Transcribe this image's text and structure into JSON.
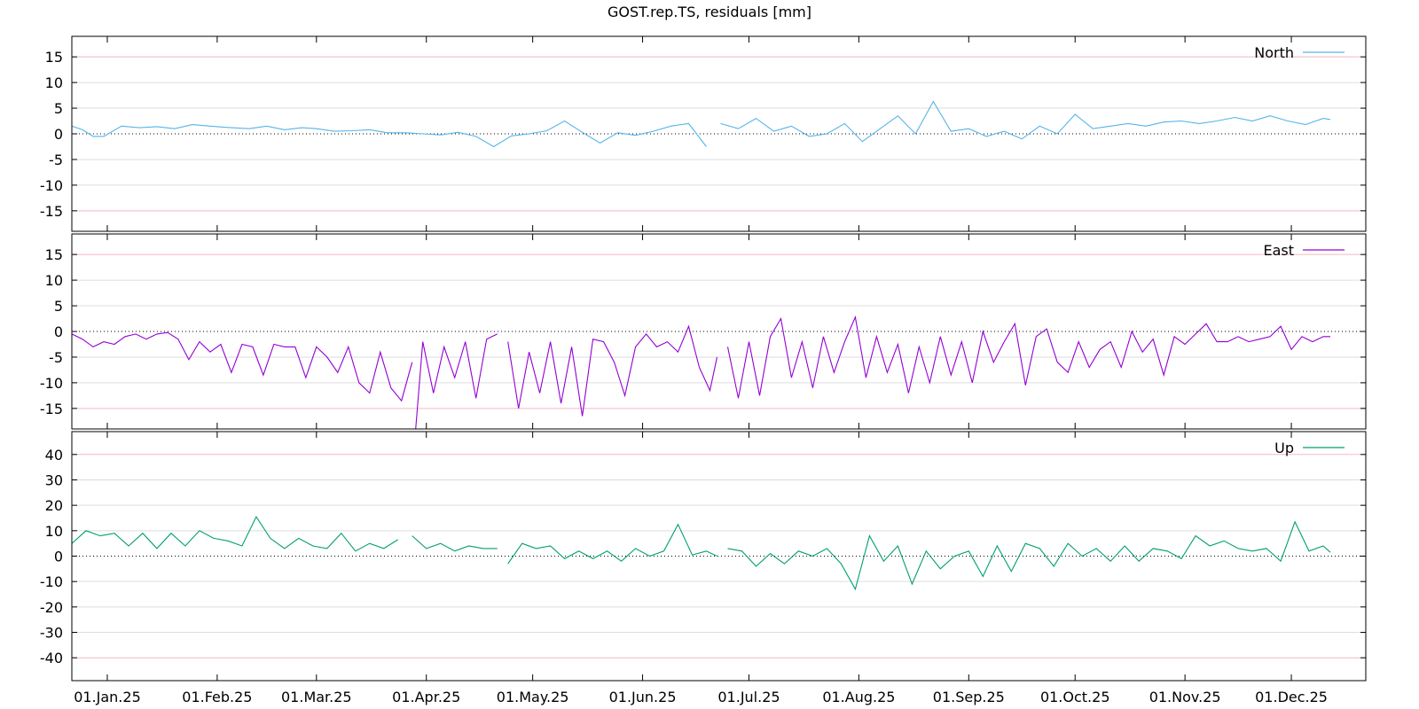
{
  "chart_data": {
    "type": "line",
    "title": "GOST.rep.TS, residuals [mm]",
    "x_range": [
      "2024-12-22",
      "2025-12-22"
    ],
    "x_ticks": [
      {
        "date": "2025-01-01",
        "label": "01.Jan.25"
      },
      {
        "date": "2025-02-01",
        "label": "01.Feb.25"
      },
      {
        "date": "2025-03-01",
        "label": "01.Mar.25"
      },
      {
        "date": "2025-04-01",
        "label": "01.Apr.25"
      },
      {
        "date": "2025-05-01",
        "label": "01.May.25"
      },
      {
        "date": "2025-06-01",
        "label": "01.Jun.25"
      },
      {
        "date": "2025-07-01",
        "label": "01.Jul.25"
      },
      {
        "date": "2025-08-01",
        "label": "01.Aug.25"
      },
      {
        "date": "2025-09-01",
        "label": "01.Sep.25"
      },
      {
        "date": "2025-10-01",
        "label": "01.Oct.25"
      },
      {
        "date": "2025-11-01",
        "label": "01.Nov.25"
      },
      {
        "date": "2025-12-01",
        "label": "01.Dec.25"
      }
    ],
    "grid": true,
    "legend_position": "top-right",
    "panels": [
      {
        "name": "North",
        "color": "#56b4e9",
        "ylim": [
          -19,
          19
        ],
        "y_ticks": [
          15,
          10,
          5,
          0,
          -5,
          -10,
          -15
        ],
        "series": [
          {
            "x": [
              "2024-12-22",
              "2024-12-25",
              "2024-12-28",
              "2024-12-31",
              "2025-01-05",
              "2025-01-10",
              "2025-01-15",
              "2025-01-20",
              "2025-01-25",
              "2025-01-30",
              "2025-02-05",
              "2025-02-10",
              "2025-02-15",
              "2025-02-20",
              "2025-02-25",
              "2025-03-01",
              "2025-03-06",
              "2025-03-11",
              "2025-03-16",
              "2025-03-21",
              "2025-03-26",
              "2025-03-31",
              "2025-04-05",
              "2025-04-10",
              "2025-04-15",
              "2025-04-20",
              "2025-04-25",
              "2025-04-30",
              "2025-05-05",
              "2025-05-10",
              "2025-05-15",
              "2025-05-20",
              "2025-05-25",
              "2025-05-30",
              "2025-06-04",
              "2025-06-09",
              "2025-06-14",
              "2025-06-19"
            ],
            "y": [
              1.5,
              0.8,
              -0.5,
              -0.5,
              1.5,
              1.2,
              1.4,
              1.0,
              1.8,
              1.5,
              1.2,
              1.0,
              1.5,
              0.8,
              1.2,
              1.0,
              0.5,
              0.6,
              0.8,
              0.2,
              0.2,
              0.0,
              -0.2,
              0.3,
              -0.5,
              -2.5,
              -0.4,
              0.0,
              0.6,
              2.5,
              0.3,
              -1.8,
              0.2,
              -0.3,
              0.5,
              1.5,
              2.0,
              -2.5
            ]
          },
          {
            "x": [
              "2025-06-23",
              "2025-06-28",
              "2025-07-03",
              "2025-07-08",
              "2025-07-13",
              "2025-07-18",
              "2025-07-23",
              "2025-07-28",
              "2025-08-02",
              "2025-08-07",
              "2025-08-12",
              "2025-08-17",
              "2025-08-22",
              "2025-08-27",
              "2025-09-01",
              "2025-09-06",
              "2025-09-11",
              "2025-09-16",
              "2025-09-21",
              "2025-09-26",
              "2025-10-01",
              "2025-10-06",
              "2025-10-11",
              "2025-10-16",
              "2025-10-21",
              "2025-10-26",
              "2025-10-31",
              "2025-11-05",
              "2025-11-10",
              "2025-11-15",
              "2025-11-20",
              "2025-11-25",
              "2025-11-30",
              "2025-12-05",
              "2025-12-10",
              "2025-12-12"
            ],
            "y": [
              2.0,
              1.0,
              3.0,
              0.5,
              1.5,
              -0.5,
              0.0,
              2.0,
              -1.5,
              1.0,
              3.5,
              0.0,
              6.3,
              0.5,
              1.0,
              -0.5,
              0.5,
              -1.0,
              1.5,
              0.0,
              3.8,
              1.0,
              1.5,
              2.0,
              1.5,
              2.3,
              2.5,
              2.0,
              2.5,
              3.2,
              2.5,
              3.5,
              2.5,
              1.8,
              3.0,
              2.8
            ]
          }
        ]
      },
      {
        "name": "East",
        "color": "#9400d3",
        "ylim": [
          -19,
          19
        ],
        "y_ticks": [
          15,
          10,
          5,
          0,
          -5,
          -10,
          -15
        ],
        "series": [
          {
            "x": [
              "2024-12-22",
              "2024-12-25",
              "2024-12-28",
              "2024-12-31",
              "2025-01-03",
              "2025-01-06",
              "2025-01-09",
              "2025-01-12",
              "2025-01-15",
              "2025-01-18",
              "2025-01-21",
              "2025-01-24",
              "2025-01-27",
              "2025-01-30",
              "2025-02-02",
              "2025-02-05",
              "2025-02-08",
              "2025-02-11",
              "2025-02-14",
              "2025-02-17",
              "2025-02-20",
              "2025-02-23",
              "2025-02-26",
              "2025-03-01",
              "2025-03-04",
              "2025-03-07",
              "2025-03-10",
              "2025-03-13",
              "2025-03-16",
              "2025-03-19",
              "2025-03-22",
              "2025-03-25",
              "2025-03-28"
            ],
            "y": [
              -0.5,
              -1.5,
              -3.0,
              -2.0,
              -2.5,
              -1.0,
              -0.5,
              -1.5,
              -0.5,
              -0.2,
              -1.5,
              -5.5,
              -2.0,
              -4.0,
              -2.5,
              -8.0,
              -2.5,
              -3.0,
              -8.5,
              -2.5,
              -3.0,
              -3.0,
              -9.0,
              -3.0,
              -5.0,
              -8.0,
              -3.0,
              -10.0,
              -12.0,
              -4.0,
              -11.0,
              -13.5,
              -6.0
            ]
          },
          {
            "x": [
              "2025-03-29",
              "2025-03-31",
              "2025-04-03",
              "2025-04-06",
              "2025-04-09",
              "2025-04-12",
              "2025-04-15",
              "2025-04-18",
              "2025-04-21"
            ],
            "y": [
              -19.0,
              -2.0,
              -12.0,
              -3.0,
              -9.0,
              -2.0,
              -13.0,
              -1.5,
              -0.5
            ]
          },
          {
            "x": [
              "2025-04-24",
              "2025-04-27",
              "2025-04-30",
              "2025-05-03",
              "2025-05-06",
              "2025-05-09",
              "2025-05-12",
              "2025-05-15",
              "2025-05-18",
              "2025-05-21",
              "2025-05-24",
              "2025-05-27",
              "2025-05-30",
              "2025-06-02",
              "2025-06-05",
              "2025-06-08",
              "2025-06-11",
              "2025-06-14",
              "2025-06-17",
              "2025-06-20",
              "2025-06-22"
            ],
            "y": [
              -2.0,
              -15.0,
              -4.0,
              -12.0,
              -2.0,
              -14.0,
              -3.0,
              -16.5,
              -1.5,
              -2.0,
              -6.0,
              -12.5,
              -3.0,
              -0.5,
              -3.0,
              -2.0,
              -4.0,
              1.0,
              -7.0,
              -11.5,
              -5.0
            ]
          },
          {
            "x": [
              "2025-06-25",
              "2025-06-28",
              "2025-07-01",
              "2025-07-04",
              "2025-07-07",
              "2025-07-10",
              "2025-07-13",
              "2025-07-16",
              "2025-07-19",
              "2025-07-22",
              "2025-07-25",
              "2025-07-28",
              "2025-07-31",
              "2025-08-03",
              "2025-08-06",
              "2025-08-09",
              "2025-08-12",
              "2025-08-15",
              "2025-08-18",
              "2025-08-21",
              "2025-08-24",
              "2025-08-27",
              "2025-08-30",
              "2025-09-02",
              "2025-09-05",
              "2025-09-08",
              "2025-09-11",
              "2025-09-14",
              "2025-09-17",
              "2025-09-20",
              "2025-09-23",
              "2025-09-26",
              "2025-09-29",
              "2025-10-02",
              "2025-10-05",
              "2025-10-08",
              "2025-10-11",
              "2025-10-14",
              "2025-10-17",
              "2025-10-20",
              "2025-10-23",
              "2025-10-26",
              "2025-10-29",
              "2025-11-01",
              "2025-11-04",
              "2025-11-07",
              "2025-11-10",
              "2025-11-13",
              "2025-11-16",
              "2025-11-19",
              "2025-11-22",
              "2025-11-25",
              "2025-11-28",
              "2025-12-01",
              "2025-12-04",
              "2025-12-07",
              "2025-12-10",
              "2025-12-12"
            ],
            "y": [
              -3.0,
              -13.0,
              -2.0,
              -12.5,
              -1.0,
              2.5,
              -9.0,
              -2.0,
              -11.0,
              -1.0,
              -8.0,
              -2.0,
              2.8,
              -9.0,
              -1.0,
              -8.0,
              -2.5,
              -12.0,
              -3.0,
              -10.0,
              -1.0,
              -8.5,
              -2.0,
              -10.0,
              0.0,
              -6.0,
              -2.0,
              1.5,
              -10.5,
              -1.0,
              0.5,
              -6.0,
              -8.0,
              -2.0,
              -7.0,
              -3.5,
              -2.0,
              -7.0,
              0.0,
              -4.0,
              -1.5,
              -8.5,
              -1.0,
              -2.5,
              -0.5,
              1.5,
              -2.0,
              -2.0,
              -1.0,
              -2.0,
              -1.5,
              -1.0,
              1.0,
              -3.5,
              -1.0,
              -2.0,
              -1.0,
              -1.0
            ]
          }
        ]
      },
      {
        "name": "Up",
        "color": "#009e73",
        "ylim": [
          -49,
          49
        ],
        "y_ticks": [
          40,
          30,
          20,
          10,
          0,
          -10,
          -20,
          -30,
          -40
        ],
        "series": [
          {
            "x": [
              "2024-12-22",
              "2024-12-26",
              "2024-12-30",
              "2025-01-03",
              "2025-01-07",
              "2025-01-11",
              "2025-01-15",
              "2025-01-19",
              "2025-01-23",
              "2025-01-27",
              "2025-01-31",
              "2025-02-04",
              "2025-02-08",
              "2025-02-12",
              "2025-02-16",
              "2025-02-20",
              "2025-02-24",
              "2025-02-28",
              "2025-03-04",
              "2025-03-08",
              "2025-03-12",
              "2025-03-16",
              "2025-03-20",
              "2025-03-24"
            ],
            "y": [
              5.0,
              10.0,
              8.0,
              9.0,
              4.0,
              9.0,
              3.0,
              9.0,
              4.0,
              10.0,
              7.0,
              6.0,
              4.0,
              15.5,
              7.0,
              3.0,
              7.0,
              4.0,
              3.0,
              9.0,
              2.0,
              5.0,
              3.0,
              6.5
            ]
          },
          {
            "x": [
              "2025-03-28",
              "2025-04-01",
              "2025-04-05",
              "2025-04-09",
              "2025-04-13",
              "2025-04-17",
              "2025-04-21"
            ],
            "y": [
              8.0,
              3.0,
              5.0,
              2.0,
              4.0,
              3.0,
              3.0
            ]
          },
          {
            "x": [
              "2025-04-24",
              "2025-04-28",
              "2025-05-02",
              "2025-05-06",
              "2025-05-10",
              "2025-05-14",
              "2025-05-18",
              "2025-05-22",
              "2025-05-26",
              "2025-05-30",
              "2025-06-03",
              "2025-06-07",
              "2025-06-11",
              "2025-06-15",
              "2025-06-19",
              "2025-06-22"
            ],
            "y": [
              -3.0,
              5.0,
              3.0,
              4.0,
              -1.0,
              2.0,
              -1.0,
              2.0,
              -2.0,
              3.0,
              0.0,
              2.0,
              12.5,
              0.5,
              2.0,
              0.0
            ]
          },
          {
            "x": [
              "2025-06-25",
              "2025-06-29",
              "2025-07-03",
              "2025-07-07",
              "2025-07-11",
              "2025-07-15",
              "2025-07-19",
              "2025-07-23",
              "2025-07-27",
              "2025-07-31",
              "2025-08-04",
              "2025-08-08",
              "2025-08-12",
              "2025-08-16",
              "2025-08-20",
              "2025-08-24",
              "2025-08-28",
              "2025-09-01",
              "2025-09-05",
              "2025-09-09",
              "2025-09-13",
              "2025-09-17",
              "2025-09-21",
              "2025-09-25",
              "2025-09-29",
              "2025-10-03",
              "2025-10-07",
              "2025-10-11",
              "2025-10-15",
              "2025-10-19",
              "2025-10-23",
              "2025-10-27",
              "2025-10-31",
              "2025-11-04",
              "2025-11-08",
              "2025-11-12",
              "2025-11-16",
              "2025-11-20",
              "2025-11-24",
              "2025-11-28",
              "2025-12-02",
              "2025-12-06",
              "2025-12-10",
              "2025-12-12"
            ],
            "y": [
              3.0,
              2.0,
              -4.0,
              1.0,
              -3.0,
              2.0,
              0.0,
              3.0,
              -3.0,
              -13.0,
              8.0,
              -2.0,
              4.0,
              -11.0,
              2.0,
              -5.0,
              0.0,
              2.0,
              -8.0,
              4.0,
              -6.0,
              5.0,
              3.0,
              -4.0,
              5.0,
              0.0,
              3.0,
              -2.0,
              4.0,
              -2.0,
              3.0,
              2.0,
              -1.0,
              8.0,
              4.0,
              6.0,
              3.0,
              2.0,
              3.0,
              -2.0,
              13.5,
              2.0,
              4.0,
              1.5
            ]
          }
        ]
      }
    ]
  }
}
